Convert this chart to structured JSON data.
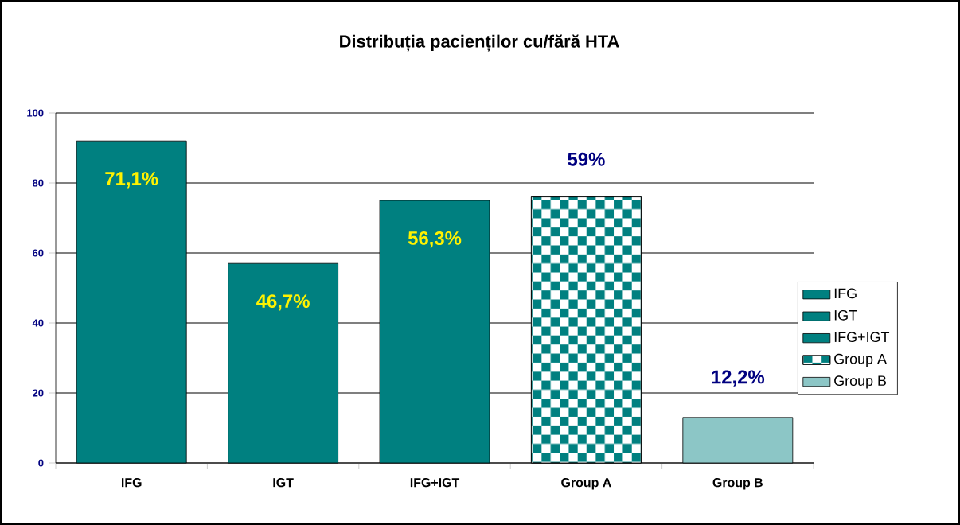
{
  "chart_data": {
    "type": "bar",
    "title": "Distribuția pacienților cu/fără HTA",
    "categories": [
      "IFG",
      "IGT",
      "IFG+IGT",
      "Group A",
      "Group B"
    ],
    "series": [
      {
        "name": "IFG",
        "color": "#008080",
        "values": [
          92,
          null,
          null,
          null,
          null
        ]
      },
      {
        "name": "IGT",
        "color": "#008080",
        "values": [
          null,
          57,
          null,
          null,
          null
        ]
      },
      {
        "name": "IFG+IGT",
        "color": "#008080",
        "values": [
          null,
          null,
          75,
          null,
          null
        ]
      },
      {
        "name": "Group A",
        "color": "#008080",
        "values": [
          null,
          null,
          null,
          76,
          null
        ]
      },
      {
        "name": "Group B",
        "color": "#8cc6c6",
        "values": [
          null,
          null,
          null,
          null,
          13
        ]
      }
    ],
    "annotations": [
      {
        "text": "71,1%",
        "x": "IFG",
        "y": 92
      },
      {
        "text": "46,7%",
        "x": "IGT",
        "y": 57
      },
      {
        "text": "56,3%",
        "x": "IFG+IGT",
        "y": 75
      },
      {
        "text": "59%",
        "x": "Group A",
        "y": 76
      },
      {
        "text": "12,2%",
        "x": "Group B",
        "y": 13
      }
    ],
    "ylim": [
      0,
      100
    ],
    "yticks": [
      0,
      20,
      40,
      60,
      80,
      100
    ],
    "grid": "y",
    "legend": "right"
  }
}
